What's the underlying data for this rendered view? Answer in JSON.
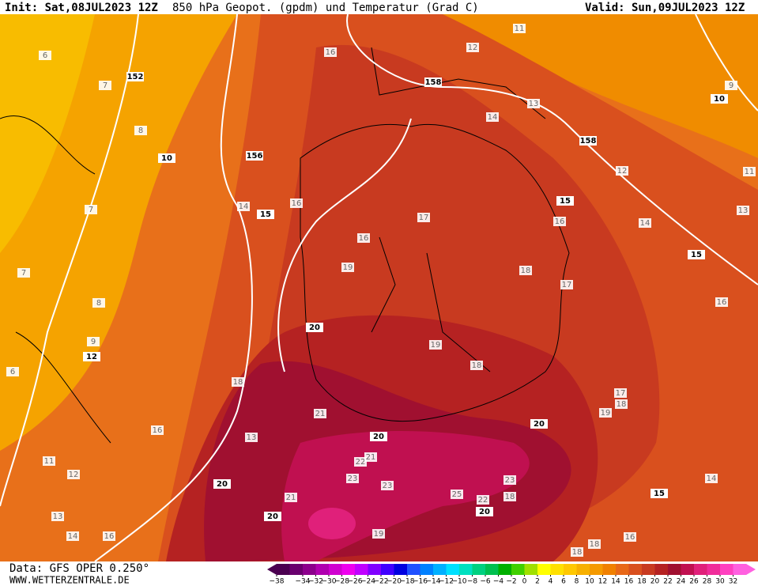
{
  "header": {
    "init": "Init: Sat,08JUL2023 12Z",
    "title": "850 hPa Geopot. (gpdm) und Temperatur (Grad C)",
    "valid": "Valid: Sun,09JUL2023 12Z"
  },
  "footer": {
    "data": "Data: GFS OPER 0.250°",
    "site": "WWW.WETTERZENTRALE.DE"
  },
  "map": {
    "temperature_labels": [
      "6",
      "7",
      "8",
      "7",
      "7",
      "8",
      "9",
      "6",
      "11",
      "12",
      "13",
      "14",
      "16",
      "16",
      "13",
      "18",
      "16",
      "12",
      "11",
      "13",
      "14",
      "9",
      "12",
      "11",
      "13",
      "14",
      "16",
      "14",
      "16",
      "17",
      "16",
      "19",
      "18",
      "17",
      "16",
      "19",
      "18",
      "17",
      "18",
      "19",
      "21",
      "22",
      "21",
      "23",
      "23",
      "25",
      "22",
      "18",
      "23",
      "21",
      "19",
      "18",
      "18",
      "16",
      "14"
    ],
    "geopotential_labels": [
      "152",
      "10",
      "156",
      "15",
      "158",
      "158",
      "10",
      "15",
      "15",
      "20",
      "20",
      "20",
      "20",
      "20",
      "20",
      "15",
      "12"
    ]
  },
  "colorbar": {
    "colors": [
      "#4b0050",
      "#6a006e",
      "#8c008c",
      "#b000b0",
      "#d000d0",
      "#ee00ee",
      "#c000ff",
      "#8000ff",
      "#4000ff",
      "#0000e0",
      "#2050ff",
      "#0080ff",
      "#00b0ff",
      "#00e0ff",
      "#00e0c0",
      "#00d080",
      "#00c050",
      "#00b000",
      "#40d000",
      "#a0e000",
      "#ffff00",
      "#ffe000",
      "#ffc800",
      "#f7b000",
      "#f59a00",
      "#f08000",
      "#e86818",
      "#d9501e",
      "#c83a20",
      "#b52222",
      "#a01030",
      "#c01050",
      "#e0207a",
      "#f02c9a",
      "#ff40c0",
      "#ff60e0"
    ],
    "ticks": [
      {
        "value": -38,
        "label": "−38"
      },
      {
        "value": -34,
        "label": "−34"
      },
      {
        "value": -32,
        "label": "−32"
      },
      {
        "value": -30,
        "label": "−30"
      },
      {
        "value": -28,
        "label": "−28"
      },
      {
        "value": -26,
        "label": "−26"
      },
      {
        "value": -24,
        "label": "−24"
      },
      {
        "value": -22,
        "label": "−22"
      },
      {
        "value": -20,
        "label": "−20"
      },
      {
        "value": -18,
        "label": "−18"
      },
      {
        "value": -16,
        "label": "−16"
      },
      {
        "value": -14,
        "label": "−14"
      },
      {
        "value": -12,
        "label": "−12"
      },
      {
        "value": -10,
        "label": "−10"
      },
      {
        "value": -8,
        "label": "−8"
      },
      {
        "value": -6,
        "label": "−6"
      },
      {
        "value": -4,
        "label": "−4"
      },
      {
        "value": -2,
        "label": "−2"
      },
      0,
      2,
      4,
      6,
      8,
      10,
      12,
      14,
      16,
      18,
      20,
      22,
      24,
      26,
      28,
      30,
      32
    ],
    "lim": [
      -38,
      34
    ]
  }
}
